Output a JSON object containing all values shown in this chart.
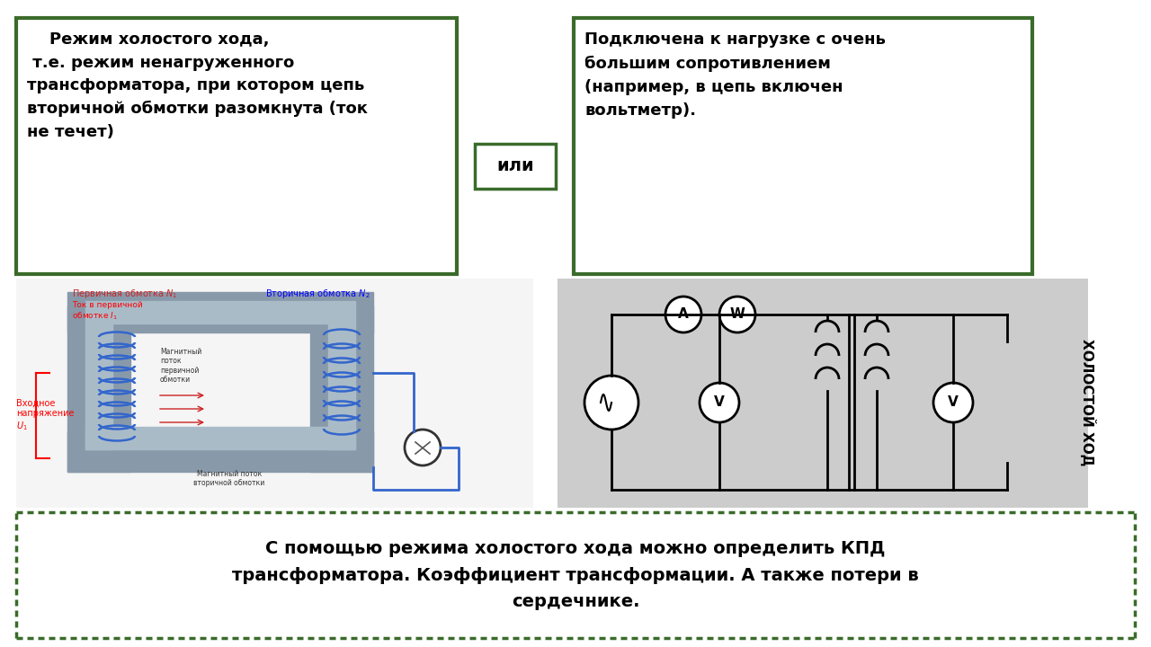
{
  "bg_color": "#ffffff",
  "green_dark": "#3a6b2a",
  "box1_text": "    Режим холостого хода,\n т.е. режим ненагруженного\nтрансформатора, при котором цепь\nвторичной обмотки разомкнута (ток\nне течет)",
  "box2_text": "или",
  "box3_text": "Подключена к нагрузке с очень\nбольшим сопротивлением\n(например, в цепь включен\nвольтметр).",
  "box4_text": "С помощью режима холостого хода можно определить КПД\nтрансформатора. Коэффициент трансформации. А также потери в\nсердечнике.",
  "side_text": "ХОЛОСТОЙ ХОД",
  "font_size_main": 13,
  "font_size_box4": 14,
  "font_size_side": 11
}
